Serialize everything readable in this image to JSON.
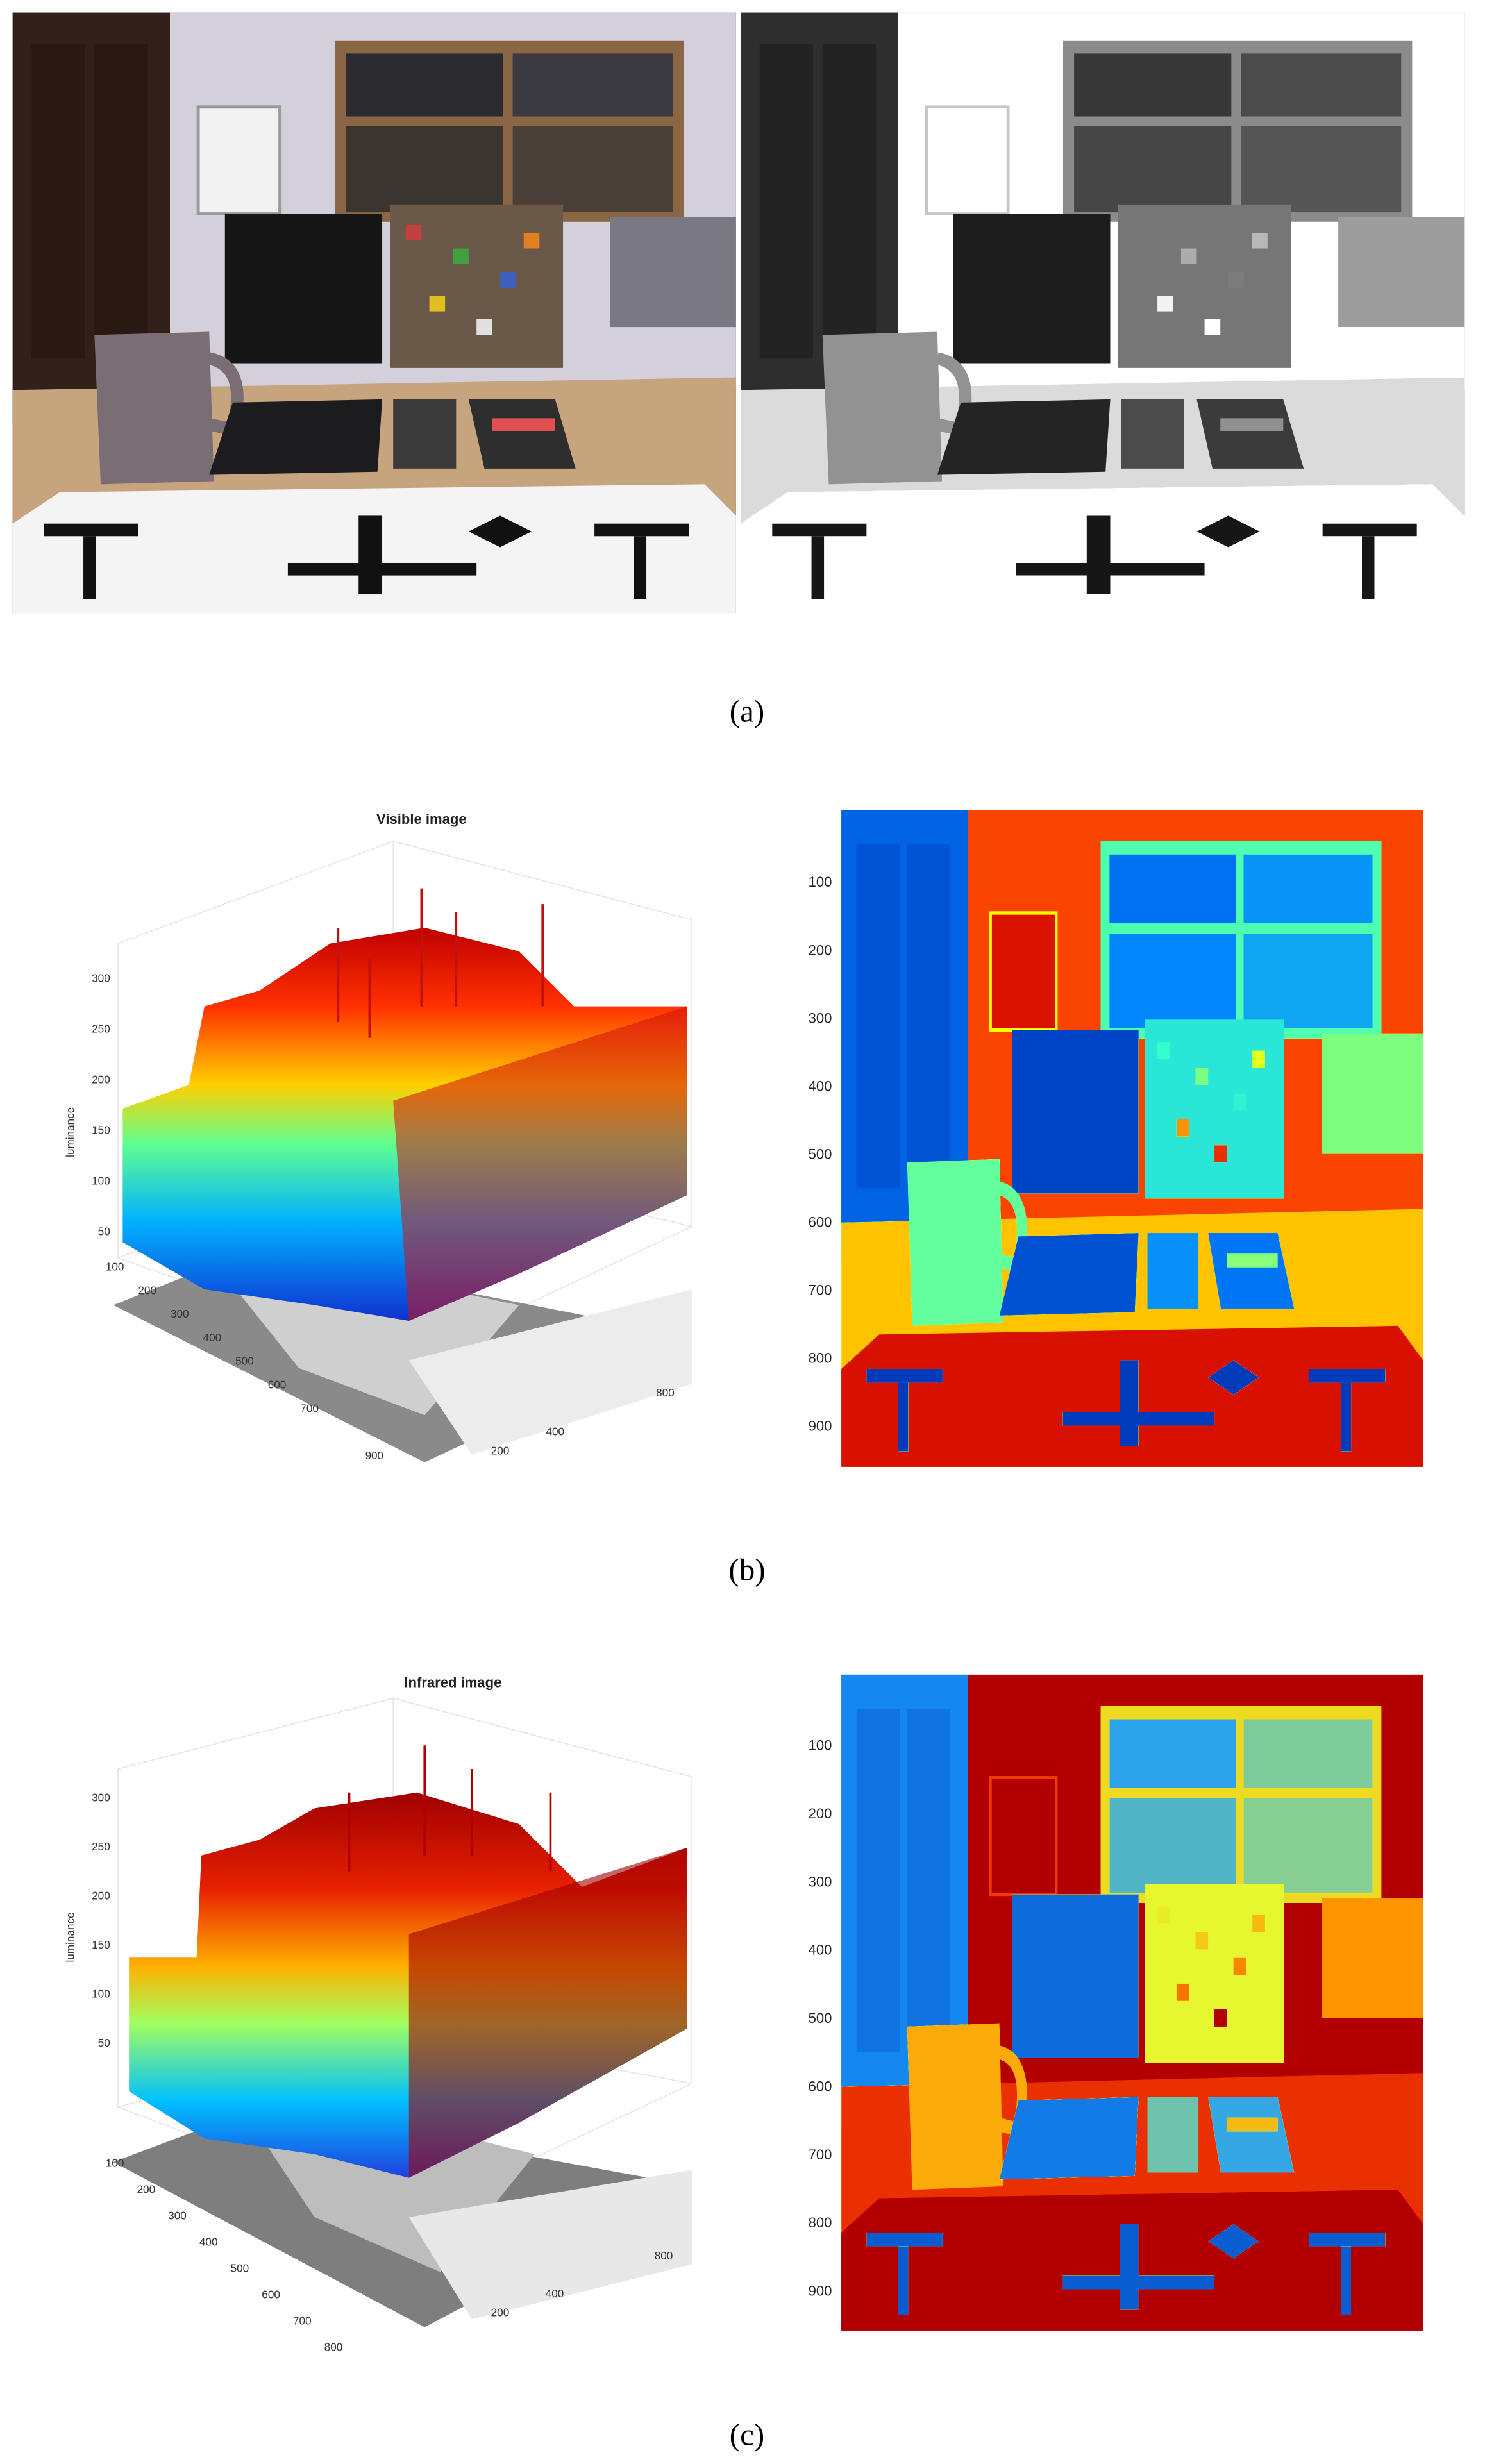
{
  "panels": [
    {
      "caption": "(a)"
    },
    {
      "caption": "(b)",
      "surface": {
        "title": "Visible image",
        "z_label": "luminance",
        "z_ticks": [
          300,
          250,
          200,
          150,
          100,
          50
        ],
        "y_ticks": [
          100,
          200,
          300,
          400,
          500,
          600,
          700,
          900
        ],
        "x_ticks": [
          200,
          400,
          800
        ]
      },
      "map": {
        "y_ticks": [
          100,
          200,
          300,
          400,
          500,
          600,
          700,
          800,
          900
        ]
      }
    },
    {
      "caption": "(c)",
      "surface": {
        "title": "Infrared image",
        "z_label": "luminance",
        "z_ticks": [
          300,
          250,
          200,
          150,
          100,
          50
        ],
        "y_ticks": [
          100,
          200,
          300,
          400,
          500,
          600,
          700,
          800
        ],
        "x_ticks": [
          200,
          400,
          800
        ]
      },
      "map": {
        "y_ticks": [
          100,
          200,
          300,
          400,
          500,
          600,
          700,
          800,
          900
        ]
      }
    }
  ]
}
